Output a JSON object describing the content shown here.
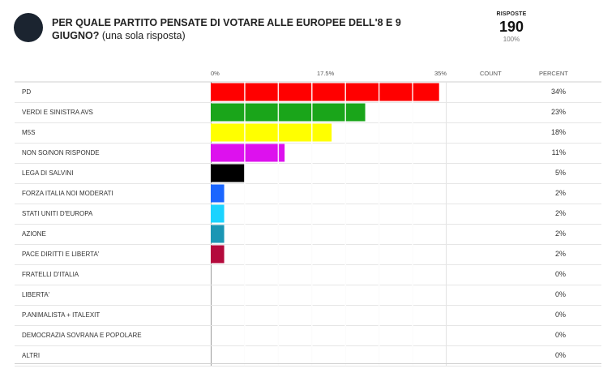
{
  "header": {
    "question_bold": "PER QUALE PARTITO PENSATE DI VOTARE ALLE EUROPEE DELL'8 E 9 GIUGNO?",
    "question_suffix": "(una sola risposta)",
    "responses_label": "RISPOSTE",
    "responses_count": "190",
    "responses_percent": "100%"
  },
  "columns": {
    "count": "COUNT",
    "percent": "PERCENT"
  },
  "chart_data": {
    "type": "bar",
    "orientation": "horizontal",
    "xlim": [
      0,
      35
    ],
    "tick_labels": [
      "0%",
      "17.5%",
      "35%"
    ],
    "grid": true,
    "categories": [
      "PD",
      "VERDI E SINISTRA AVS",
      "M5S",
      "NON SO/NON RISPONDE",
      "LEGA DI SALVINI",
      "FORZA ITALIA NOI MODERATI",
      "STATI UNITI D'EUROPA",
      "AZIONE",
      "PACE DIRITTI E LIBERTA'",
      "FRATELLI D'ITALIA",
      "LIBERTA'",
      "P.ANIMALISTA + ITALEXIT",
      "DEMOCRAZIA SOVRANA E POPOLARE",
      "ALTRI"
    ],
    "values": [
      34,
      23,
      18,
      11,
      5,
      2,
      2,
      2,
      2,
      0,
      0,
      0,
      0,
      0
    ],
    "percent_labels": [
      "34%",
      "23%",
      "18%",
      "11%",
      "5%",
      "2%",
      "2%",
      "2%",
      "2%",
      "0%",
      "0%",
      "0%",
      "0%",
      "0%"
    ],
    "colors": [
      "#ff0000",
      "#1aa51a",
      "#ffff00",
      "#dd11ee",
      "#000000",
      "#1a66ff",
      "#1ad3ff",
      "#1a96b4",
      "#b40a3c",
      "#cccccc",
      "#cccccc",
      "#cccccc",
      "#cccccc",
      "#cccccc"
    ]
  }
}
